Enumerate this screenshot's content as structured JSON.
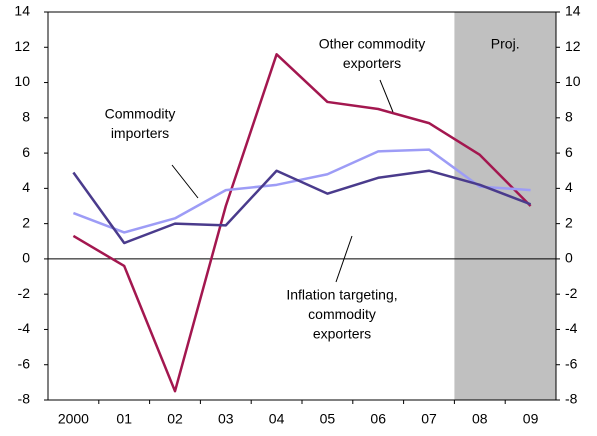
{
  "chart_data": {
    "type": "line",
    "categories": [
      "2000",
      "01",
      "02",
      "03",
      "04",
      "05",
      "06",
      "07",
      "08",
      "09"
    ],
    "series": [
      {
        "name": [
          "Other commodity",
          "exporters"
        ],
        "color": "#a3174f",
        "values": [
          1.3,
          -0.4,
          -7.5,
          3.0,
          11.6,
          8.9,
          8.5,
          7.7,
          5.9,
          3.0
        ]
      },
      {
        "name": [
          "Commodity",
          "importers"
        ],
        "color": "#9d9cf6",
        "values": [
          2.6,
          1.5,
          2.3,
          3.9,
          4.2,
          4.8,
          6.1,
          6.2,
          4.1,
          3.9
        ]
      },
      {
        "name": [
          "Inflation targeting,",
          "commodity",
          "exporters"
        ],
        "color": "#4a3b8c",
        "values": [
          4.9,
          0.9,
          2.0,
          1.9,
          5.0,
          3.7,
          4.6,
          5.0,
          4.2,
          3.1
        ]
      }
    ],
    "projection": {
      "label": "Proj.",
      "start_index": 8,
      "color": "#c0c0c0"
    },
    "ylim": [
      -8,
      14
    ],
    "yticks": [
      -8,
      -6,
      -4,
      -2,
      0,
      2,
      4,
      6,
      8,
      10,
      12,
      14
    ]
  }
}
